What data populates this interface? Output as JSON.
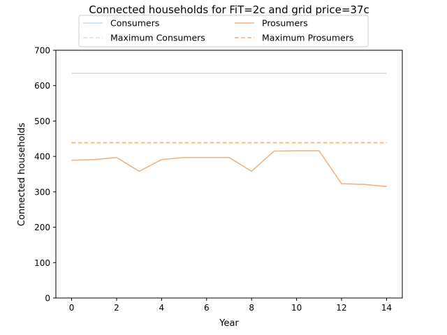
{
  "chart_data": {
    "type": "line",
    "title": "Connected households for FiT=2c and grid price=37c",
    "xlabel": "Year",
    "ylabel": "Connected households",
    "xlim": [
      -0.7,
      14.7
    ],
    "ylim": [
      0,
      700
    ],
    "xticks": [
      0,
      2,
      4,
      6,
      8,
      10,
      12,
      14
    ],
    "yticks": [
      0,
      100,
      200,
      300,
      400,
      500,
      600,
      700
    ],
    "grid": false,
    "legend_position": "top-center",
    "x": [
      0,
      1,
      2,
      3,
      4,
      5,
      6,
      7,
      8,
      9,
      10,
      11,
      12,
      13,
      14
    ],
    "series": [
      {
        "name": "Consumers",
        "color": "#c6dbef",
        "style": "solid",
        "values": [
          635,
          635,
          635,
          635,
          635,
          635,
          635,
          635,
          635,
          635,
          635,
          635,
          635,
          635,
          635
        ]
      },
      {
        "name": "Prosumers",
        "color": "#f5b27f",
        "style": "solid",
        "values": [
          389,
          391,
          397,
          358,
          391,
          397,
          397,
          397,
          358,
          415,
          416,
          416,
          323,
          321,
          315
        ]
      },
      {
        "name": "Maximum Consumers",
        "color": "#d9dde3",
        "style": "dashed",
        "values": [
          635,
          635,
          635,
          635,
          635,
          635,
          635,
          635,
          635,
          635,
          635,
          635,
          635,
          635,
          635
        ]
      },
      {
        "name": "Maximum Prosumers",
        "color": "#f5b27f",
        "style": "dashed",
        "values": [
          439,
          439,
          439,
          439,
          439,
          439,
          439,
          439,
          439,
          439,
          439,
          439,
          439,
          439,
          439
        ]
      }
    ],
    "legend_order": [
      "Consumers",
      "Maximum Consumers",
      "Prosumers",
      "Maximum Prosumers"
    ]
  }
}
